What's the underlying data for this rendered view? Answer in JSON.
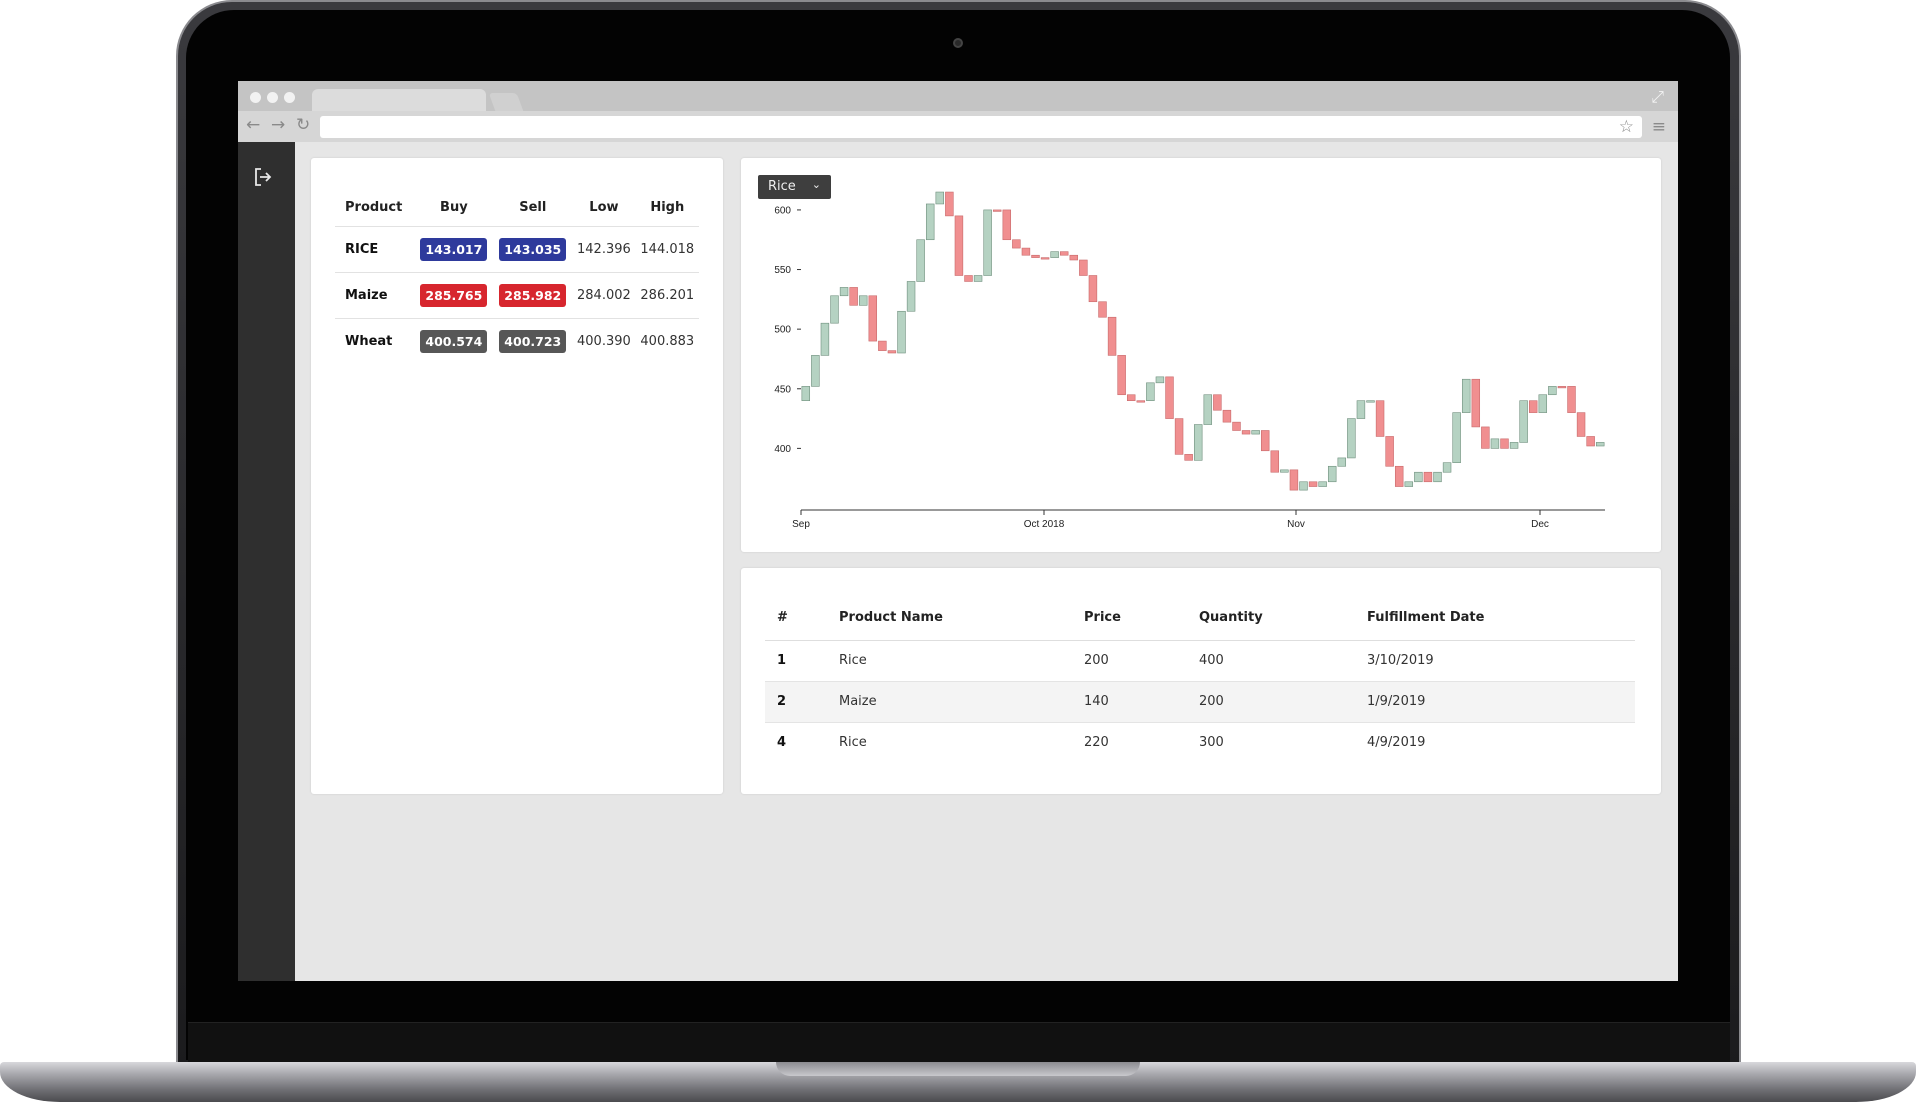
{
  "prices": {
    "headers": [
      "Product",
      "Buy",
      "Sell",
      "Low",
      "High"
    ],
    "rows": [
      {
        "product": "RICE",
        "buy": "143.017",
        "sell": "143.035",
        "low": "142.396",
        "high": "144.018",
        "color": "#2e3a9c"
      },
      {
        "product": "Maize",
        "buy": "285.765",
        "sell": "285.982",
        "low": "284.002",
        "high": "286.201",
        "color": "#d7262e"
      },
      {
        "product": "Wheat",
        "buy": "400.574",
        "sell": "400.723",
        "low": "400.390",
        "high": "400.883",
        "color": "#575757"
      }
    ]
  },
  "chart": {
    "selector": {
      "selected": "Rice",
      "icon": "chevron-down-icon"
    }
  },
  "chart_data": {
    "type": "candlestick",
    "ylim": [
      350,
      610
    ],
    "yticks": [
      400,
      450,
      500,
      550,
      600
    ],
    "xticks": [
      "Sep",
      "Oct 2018",
      "Nov",
      "Dec"
    ],
    "up_color": "#b5d2c2",
    "down_color": "#f08f90",
    "candles": [
      [
        440,
        452,
        "u"
      ],
      [
        452,
        478,
        "u"
      ],
      [
        478,
        505,
        "u"
      ],
      [
        505,
        528,
        "u"
      ],
      [
        528,
        535,
        "u"
      ],
      [
        535,
        520,
        "d"
      ],
      [
        520,
        528,
        "u"
      ],
      [
        528,
        490,
        "d"
      ],
      [
        490,
        482,
        "d"
      ],
      [
        482,
        480,
        "d"
      ],
      [
        480,
        515,
        "u"
      ],
      [
        515,
        540,
        "u"
      ],
      [
        540,
        575,
        "u"
      ],
      [
        575,
        605,
        "u"
      ],
      [
        605,
        615,
        "u"
      ],
      [
        615,
        595,
        "d"
      ],
      [
        595,
        545,
        "d"
      ],
      [
        545,
        540,
        "d"
      ],
      [
        540,
        545,
        "u"
      ],
      [
        545,
        600,
        "u"
      ],
      [
        600,
        600,
        "d"
      ],
      [
        600,
        575,
        "d"
      ],
      [
        575,
        568,
        "d"
      ],
      [
        568,
        562,
        "d"
      ],
      [
        562,
        560,
        "d"
      ],
      [
        560,
        560,
        "d"
      ],
      [
        560,
        565,
        "u"
      ],
      [
        565,
        562,
        "d"
      ],
      [
        562,
        558,
        "d"
      ],
      [
        558,
        545,
        "d"
      ],
      [
        545,
        523,
        "d"
      ],
      [
        523,
        510,
        "d"
      ],
      [
        510,
        478,
        "d"
      ],
      [
        478,
        445,
        "d"
      ],
      [
        445,
        440,
        "d"
      ],
      [
        440,
        440,
        "d"
      ],
      [
        440,
        455,
        "u"
      ],
      [
        455,
        460,
        "u"
      ],
      [
        460,
        425,
        "d"
      ],
      [
        425,
        395,
        "d"
      ],
      [
        395,
        390,
        "d"
      ],
      [
        390,
        420,
        "u"
      ],
      [
        420,
        445,
        "u"
      ],
      [
        445,
        432,
        "d"
      ],
      [
        432,
        422,
        "d"
      ],
      [
        422,
        415,
        "d"
      ],
      [
        415,
        412,
        "d"
      ],
      [
        412,
        415,
        "u"
      ],
      [
        415,
        398,
        "d"
      ],
      [
        398,
        380,
        "d"
      ],
      [
        380,
        382,
        "u"
      ],
      [
        382,
        365,
        "d"
      ],
      [
        365,
        372,
        "u"
      ],
      [
        372,
        368,
        "d"
      ],
      [
        368,
        372,
        "u"
      ],
      [
        372,
        385,
        "u"
      ],
      [
        385,
        392,
        "u"
      ],
      [
        392,
        425,
        "u"
      ],
      [
        425,
        440,
        "u"
      ],
      [
        440,
        440,
        "u"
      ],
      [
        440,
        410,
        "d"
      ],
      [
        410,
        385,
        "d"
      ],
      [
        385,
        368,
        "d"
      ],
      [
        368,
        372,
        "u"
      ],
      [
        372,
        380,
        "u"
      ],
      [
        380,
        372,
        "d"
      ],
      [
        372,
        380,
        "u"
      ],
      [
        380,
        388,
        "u"
      ],
      [
        388,
        430,
        "u"
      ],
      [
        430,
        458,
        "u"
      ],
      [
        458,
        418,
        "d"
      ],
      [
        418,
        400,
        "d"
      ],
      [
        400,
        408,
        "u"
      ],
      [
        408,
        400,
        "d"
      ],
      [
        400,
        405,
        "u"
      ],
      [
        405,
        440,
        "u"
      ],
      [
        440,
        430,
        "d"
      ],
      [
        430,
        445,
        "u"
      ],
      [
        445,
        452,
        "u"
      ],
      [
        452,
        452,
        "d"
      ],
      [
        452,
        430,
        "d"
      ],
      [
        430,
        410,
        "d"
      ],
      [
        410,
        402,
        "d"
      ],
      [
        402,
        405,
        "u"
      ]
    ]
  },
  "orders": {
    "headers": [
      "#",
      "Product Name",
      "Price",
      "Quantity",
      "Fulfillment Date"
    ],
    "rows": [
      {
        "id": "1",
        "name": "Rice",
        "price": "200",
        "qty": "400",
        "date": "3/10/2019"
      },
      {
        "id": "2",
        "name": "Maize",
        "price": "140",
        "qty": "200",
        "date": "1/9/2019"
      },
      {
        "id": "4",
        "name": "Rice",
        "price": "220",
        "qty": "300",
        "date": "4/9/2019"
      }
    ]
  }
}
